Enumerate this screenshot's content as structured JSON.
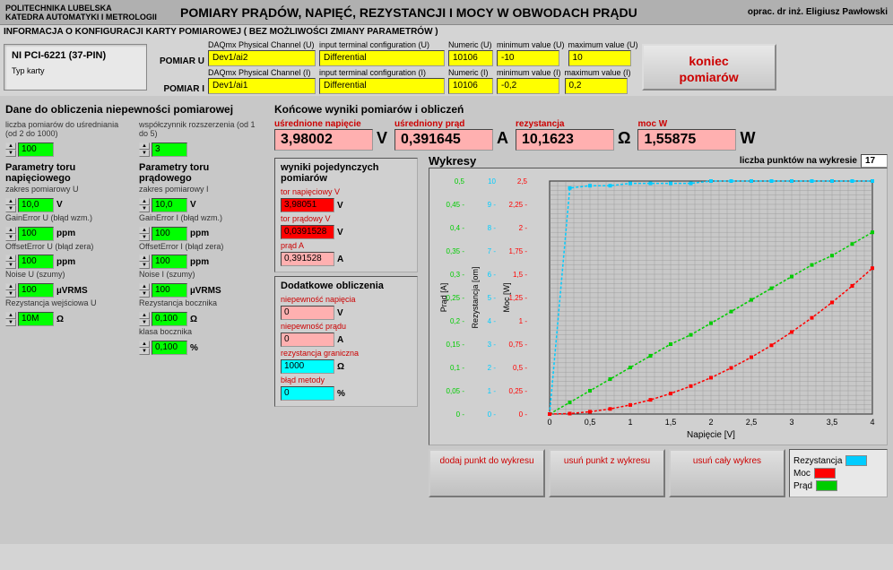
{
  "header": {
    "org_line1": "POLITECHNIKA LUBELSKA",
    "org_line2": "KATEDRA AUTOMATYKI I METROLOGII",
    "title": "POMIARY PRĄDÓW, NAPIĘĆ, REZYSTANCJI I MOCY W OBWODACH PRĄDU",
    "author": "oprac. dr inż. Eligiusz Pawłowski"
  },
  "config": {
    "bar_title": "INFORMACJA O KONFIGURACJI KARTY POMIAROWEJ ( BEZ MOŻLIWOŚCI ZMIANY PARAMETRÓW )",
    "card_name": "NI PCI-6221 (37-PIN)",
    "card_type_label": "Typ karty",
    "pomiar_u_label": "POMIAR U",
    "pomiar_i_label": "POMIAR I",
    "col_labels": {
      "daqmx_u": "DAQmx Physical Channel (U)",
      "daqmx_i": "DAQmx Physical Channel (I)",
      "term_u": "input terminal configuration (U)",
      "term_i": "input terminal configuration (I)",
      "num_u": "Numeric (U)",
      "num_i": "Numeric (I)",
      "min_u": "minimum value (U)",
      "min_i": "minimum value (I)",
      "max_u": "maximum value (U)",
      "max_i": "maximum value (I)"
    },
    "values": {
      "daqmx_u": "Dev1/ai2",
      "daqmx_i": "Dev1/ai1",
      "term_u": "Differential",
      "term_i": "Differential",
      "num_u": "10106",
      "num_i": "10106",
      "min_u": "-10",
      "min_i": "-0,2",
      "max_u": "10",
      "max_i": "0,2"
    },
    "koniec_line1": "koniec",
    "koniec_line2": "pomiarów"
  },
  "left": {
    "title": "Dane do obliczenia niepewności pomiarowej",
    "liczba_label": "liczba pomiarów do uśredniania (od 2 do 1000)",
    "liczba_val": "100",
    "wspol_label": "współczynnik rozszerzenia (od 1 do 5)",
    "wspol_val": "3",
    "voltage": {
      "heading": "Parametry toru napięciowego",
      "zakres_label": "zakres pomiarowy U",
      "zakres_val": "10,0",
      "zakres_unit": "V",
      "gain_label": "GainError U (błąd wzm.)",
      "gain_val": "100",
      "gain_unit": "ppm",
      "offset_label": "OffsetError U (błąd zera)",
      "offset_val": "100",
      "offset_unit": "ppm",
      "noise_label": "Noise U (szumy)",
      "noise_val": "100",
      "noise_unit": "µVRMS",
      "rez_label": "Rezystancja wejściowa U",
      "rez_val": "10M",
      "rez_unit": "Ω"
    },
    "current": {
      "heading": "Parametry toru prądowego",
      "zakres_label": "zakres pomiarowy I",
      "zakres_val": "10,0",
      "zakres_unit": "V",
      "gain_label": "GainError I (błąd wzm.)",
      "gain_val": "100",
      "gain_unit": "ppm",
      "offset_label": "OffsetError I (błąd zera)",
      "offset_val": "100",
      "offset_unit": "ppm",
      "noise_label": "Noise I (szumy)",
      "noise_val": "100",
      "noise_unit": "µVRMS",
      "rez_label": "Rezystancja bocznika",
      "rez_val": "0,100",
      "rez_unit": "Ω",
      "klasa_label": "klasa bocznika",
      "klasa_val": "0,100",
      "klasa_unit": "%"
    }
  },
  "results": {
    "title": "Końcowe wyniki pomiarów i obliczeń",
    "voltage": {
      "label": "uśrednione napięcie",
      "value": "3,98002",
      "unit": "V"
    },
    "current": {
      "label": "uśredniony prąd",
      "value": "0,391645",
      "unit": "A"
    },
    "resistance": {
      "label": "rezystancja",
      "value": "10,1623",
      "unit": "Ω"
    },
    "power": {
      "label": "moc W",
      "value": "1,55875",
      "unit": "W"
    }
  },
  "single": {
    "title": "wyniki pojedynczych pomiarów",
    "tor_v_label": "tor napięciowy V",
    "tor_v_val": "3,98051",
    "tor_v_unit": "V",
    "tor_i_label": "tor prądowy V",
    "tor_i_val": "0,0391528",
    "tor_i_unit": "V",
    "prad_label": "prąd A",
    "prad_val": "0,391528",
    "prad_unit": "A"
  },
  "additional": {
    "title": "Dodatkowe obliczenia",
    "nap_label": "niepewność napięcia",
    "nap_val": "0",
    "nap_unit": "V",
    "prad_label": "niepewność prądu",
    "prad_val": "0",
    "prad_unit": "A",
    "rez_label": "rezystancja graniczna",
    "rez_val": "1000",
    "rez_unit": "Ω",
    "blad_label": "błąd metody",
    "blad_val": "0",
    "blad_unit": "%"
  },
  "chart": {
    "title": "Wykresy",
    "points_label": "liczba punktów na wykresie",
    "points_val": "17",
    "x_label": "Napięcie [V]",
    "y_labels": {
      "prad": "Prąd [A]",
      "rez": "Rezystancja [om]",
      "moc": "Moc [W]"
    },
    "x_ticks": [
      "0",
      "0,5",
      "1",
      "1,5",
      "2",
      "2,5",
      "3",
      "3,5",
      "4"
    ],
    "prad_ticks": [
      "0",
      "0,05",
      "0,1",
      "0,15",
      "0,2",
      "0,25",
      "0,3",
      "0,35",
      "0,4",
      "0,45",
      "0,5"
    ],
    "rez_ticks": [
      "0",
      "1",
      "2",
      "3",
      "4",
      "5",
      "6",
      "7",
      "8",
      "9",
      "10"
    ],
    "moc_ticks": [
      "0",
      "0,25",
      "0,5",
      "0,75",
      "1",
      "1,25",
      "1,5",
      "1,75",
      "2",
      "2,25",
      "2,5"
    ],
    "colors": {
      "prad": "#00cc00",
      "rez": "#00ccff",
      "moc": "#ff0000",
      "grid": "#888888",
      "bg": "#c8c8c8"
    },
    "series": {
      "rez_y_frac": [
        0,
        0.97,
        0.98,
        0.98,
        0.99,
        0.99,
        0.99,
        0.99,
        1.0,
        1.0,
        1.0,
        1.0,
        1.0,
        1.0,
        1.0,
        1.0,
        1.0
      ],
      "prad_y_frac": [
        0,
        0.05,
        0.1,
        0.15,
        0.2,
        0.25,
        0.3,
        0.34,
        0.39,
        0.44,
        0.49,
        0.54,
        0.59,
        0.64,
        0.68,
        0.73,
        0.78
      ],
      "moc_y_frac": [
        0,
        0.002,
        0.01,
        0.022,
        0.039,
        0.061,
        0.088,
        0.12,
        0.156,
        0.198,
        0.244,
        0.295,
        0.352,
        0.413,
        0.479,
        0.55,
        0.626
      ]
    },
    "buttons": {
      "add": "dodaj punkt do wykresu",
      "remove": "usuń punkt z wykresu",
      "clear": "usuń cały wykres"
    },
    "legend": {
      "rez": "Rezystancja",
      "moc": "Moc",
      "prad": "Prąd"
    }
  }
}
